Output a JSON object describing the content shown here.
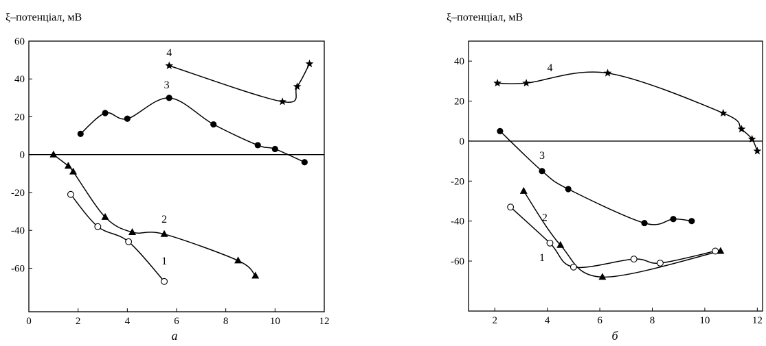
{
  "chart_data": [
    {
      "type": "scatter",
      "panel_label": "а",
      "ylabel": "ξ–потенціал, мВ",
      "xlabel": "",
      "xlim": [
        0,
        12
      ],
      "ylim": [
        -83,
        60
      ],
      "xticks": [
        0,
        2,
        4,
        6,
        8,
        10,
        12
      ],
      "yticks": [
        60,
        40,
        20,
        0,
        -20,
        -40,
        -60
      ],
      "zero_line": true,
      "series": [
        {
          "label": "1",
          "marker": "circle-open",
          "points": [
            [
              1.7,
              -21
            ],
            [
              2.8,
              -38
            ],
            [
              4.05,
              -46
            ],
            [
              5.5,
              -67
            ]
          ],
          "label_pos": [
            5.5,
            -58
          ]
        },
        {
          "label": "2",
          "marker": "triangle",
          "points": [
            [
              1.0,
              0
            ],
            [
              1.6,
              -6
            ],
            [
              1.8,
              -9
            ],
            [
              3.1,
              -33
            ],
            [
              4.2,
              -41
            ],
            [
              5.5,
              -42
            ],
            [
              8.5,
              -56
            ],
            [
              9.2,
              -64
            ]
          ],
          "label_pos": [
            5.5,
            -36
          ]
        },
        {
          "label": "3",
          "marker": "circle",
          "points": [
            [
              2.1,
              11
            ],
            [
              3.1,
              22
            ],
            [
              4.0,
              19
            ],
            [
              5.7,
              30
            ],
            [
              7.5,
              16
            ],
            [
              9.3,
              5
            ],
            [
              10.0,
              3
            ],
            [
              11.2,
              -4
            ]
          ],
          "label_pos": [
            5.6,
            35
          ]
        },
        {
          "label": "4",
          "marker": "star",
          "points": [
            [
              5.7,
              47
            ],
            [
              10.3,
              28
            ],
            [
              10.9,
              36
            ],
            [
              11.4,
              48
            ]
          ],
          "label_pos": [
            5.7,
            52
          ]
        }
      ]
    },
    {
      "type": "scatter",
      "panel_label": "б",
      "ylabel": "ξ–потенціал, мВ",
      "xlabel": "",
      "xlim": [
        1,
        12.2
      ],
      "ylim": [
        -85,
        50
      ],
      "xticks": [
        2,
        4,
        6,
        8,
        10,
        12
      ],
      "yticks": [
        40,
        20,
        0,
        -20,
        -40,
        -60
      ],
      "zero_line": true,
      "series": [
        {
          "label": "1",
          "marker": "circle-open",
          "points": [
            [
              2.6,
              -33
            ],
            [
              4.1,
              -51
            ],
            [
              5.0,
              -63
            ],
            [
              7.3,
              -59
            ],
            [
              8.3,
              -61
            ],
            [
              10.4,
              -55
            ]
          ],
          "label_pos": [
            3.8,
            -60
          ]
        },
        {
          "label": "2",
          "marker": "triangle",
          "points": [
            [
              3.1,
              -25
            ],
            [
              4.5,
              -52
            ],
            [
              6.1,
              -68
            ],
            [
              10.6,
              -55
            ]
          ],
          "label_pos": [
            3.9,
            -40
          ]
        },
        {
          "label": "3",
          "marker": "circle",
          "points": [
            [
              2.2,
              5
            ],
            [
              3.8,
              -15
            ],
            [
              4.8,
              -24
            ],
            [
              7.7,
              -41
            ],
            [
              8.8,
              -39
            ],
            [
              9.5,
              -40
            ]
          ],
          "label_pos": [
            3.8,
            -9
          ]
        },
        {
          "label": "4",
          "marker": "star",
          "points": [
            [
              2.1,
              29
            ],
            [
              3.2,
              29
            ],
            [
              6.3,
              34
            ],
            [
              10.7,
              14
            ],
            [
              11.4,
              6
            ],
            [
              11.8,
              1
            ],
            [
              12.0,
              -5
            ]
          ],
          "label_pos": [
            4.1,
            35
          ]
        }
      ]
    }
  ]
}
